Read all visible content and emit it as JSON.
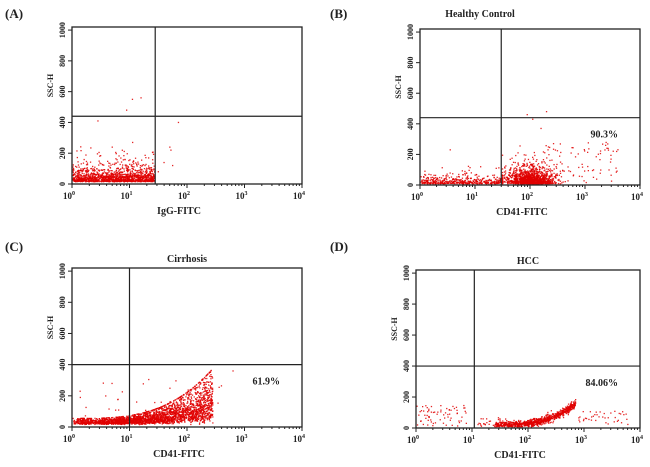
{
  "chart_data": [
    {
      "type": "scatter",
      "panel_label": "(A)",
      "title": "",
      "xlabel": "IgG-FITC",
      "ylabel": "SSC-H",
      "xscale": "log",
      "xlim": [
        1,
        10000
      ],
      "ylim": [
        0,
        1000
      ],
      "xticks": [
        "10^0",
        "10^1",
        "10^2",
        "10^3",
        "10^4"
      ],
      "yticks": [
        "0",
        "200",
        "400",
        "600",
        "800",
        "1000"
      ],
      "gate": {
        "x": 28,
        "y": 440
      },
      "annotation": "",
      "point_color": "#e00000"
    },
    {
      "type": "scatter",
      "panel_label": "(B)",
      "title": "Healthy Control",
      "xlabel": "CD41-FITC",
      "ylabel": "SSC-H",
      "xscale": "log",
      "xlim": [
        1,
        10000
      ],
      "ylim": [
        0,
        1000
      ],
      "xticks": [
        "10^0",
        "10^1",
        "10^2",
        "10^3",
        "10^4"
      ],
      "yticks": [
        "0",
        "200",
        "400",
        "600",
        "800",
        "1000"
      ],
      "gate": {
        "x": 30,
        "y": 440
      },
      "annotation": "90.3%",
      "point_color": "#e00000"
    },
    {
      "type": "scatter",
      "panel_label": "(C)",
      "title": "Cirrhosis",
      "xlabel": "CD41-FITC",
      "ylabel": "SSC-H",
      "xscale": "log",
      "xlim": [
        1,
        10000
      ],
      "ylim": [
        0,
        1000
      ],
      "xticks": [
        "10^0",
        "10^1",
        "10^2",
        "10^3",
        "10^4"
      ],
      "yticks": [
        "0",
        "200",
        "400",
        "600",
        "800",
        "1000"
      ],
      "gate": {
        "x": 10,
        "y": 400
      },
      "annotation": "61.9%",
      "point_color": "#e00000"
    },
    {
      "type": "scatter",
      "panel_label": "(D)",
      "title": "HCC",
      "xlabel": "CD41-FITC",
      "ylabel": "SSC-H",
      "xscale": "log",
      "xlim": [
        1,
        10000
      ],
      "ylim": [
        0,
        1000
      ],
      "xticks": [
        "10^0",
        "10^1",
        "10^2",
        "10^3",
        "10^4"
      ],
      "yticks": [
        "0",
        "200",
        "400",
        "600",
        "800",
        "1000"
      ],
      "gate": {
        "x": 11,
        "y": 400
      },
      "annotation": "84.06%",
      "point_color": "#e00000"
    }
  ]
}
